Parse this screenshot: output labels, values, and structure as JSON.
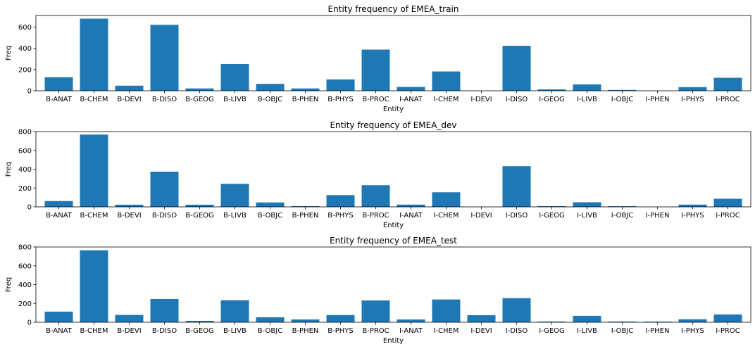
{
  "chart_data": [
    {
      "type": "bar",
      "title": "Entity frequency of EMEA_train",
      "xlabel": "Entity",
      "ylabel": "Freq",
      "ylim": [
        0,
        710
      ],
      "yticks": [
        0,
        200,
        400,
        600
      ],
      "color": "#1f77b4",
      "categories": [
        "B-ANAT",
        "B-CHEM",
        "B-DEVI",
        "B-DISO",
        "B-GEOG",
        "B-LIVB",
        "B-OBJC",
        "B-PHEN",
        "B-PHYS",
        "B-PROC",
        "I-ANAT",
        "I-CHEM",
        "I-DEVI",
        "I-DISO",
        "I-GEOG",
        "I-LIVB",
        "I-OBJC",
        "I-PHEN",
        "I-PHYS",
        "I-PROC"
      ],
      "values": [
        128,
        680,
        48,
        622,
        22,
        252,
        65,
        22,
        107,
        388,
        36,
        182,
        0,
        424,
        13,
        60,
        8,
        0,
        34,
        122
      ]
    },
    {
      "type": "bar",
      "title": "Entity frequency of EMEA_dev",
      "xlabel": "Entity",
      "ylabel": "Freq",
      "ylim": [
        0,
        800
      ],
      "yticks": [
        0,
        200,
        400,
        600,
        800
      ],
      "color": "#1f77b4",
      "categories": [
        "B-ANAT",
        "B-CHEM",
        "B-DEVI",
        "B-DISO",
        "B-GEOG",
        "B-LIVB",
        "B-OBJC",
        "B-PHEN",
        "B-PHYS",
        "B-PROC",
        "I-ANAT",
        "I-CHEM",
        "I-DEVI",
        "I-DISO",
        "I-GEOG",
        "I-LIVB",
        "I-OBJC",
        "I-PHEN",
        "I-PHYS",
        "I-PROC"
      ],
      "values": [
        62,
        768,
        23,
        374,
        23,
        245,
        47,
        8,
        125,
        230,
        24,
        155,
        0,
        432,
        8,
        49,
        7,
        0,
        24,
        86
      ]
    },
    {
      "type": "bar",
      "title": "Entity frequency of EMEA_test",
      "xlabel": "Entity",
      "ylabel": "Freq",
      "ylim": [
        0,
        800
      ],
      "yticks": [
        0,
        200,
        400,
        600,
        800
      ],
      "color": "#1f77b4",
      "categories": [
        "B-ANAT",
        "B-CHEM",
        "B-DEVI",
        "B-DISO",
        "B-GEOG",
        "B-LIVB",
        "B-OBJC",
        "B-PHEN",
        "B-PHYS",
        "B-PROC",
        "I-ANAT",
        "I-CHEM",
        "I-DEVI",
        "I-DISO",
        "I-GEOG",
        "I-LIVB",
        "I-OBJC",
        "I-PHEN",
        "I-PHYS",
        "I-PROC"
      ],
      "values": [
        113,
        765,
        78,
        247,
        15,
        234,
        53,
        30,
        77,
        232,
        30,
        242,
        75,
        256,
        8,
        68,
        8,
        7,
        32,
        83
      ]
    }
  ]
}
